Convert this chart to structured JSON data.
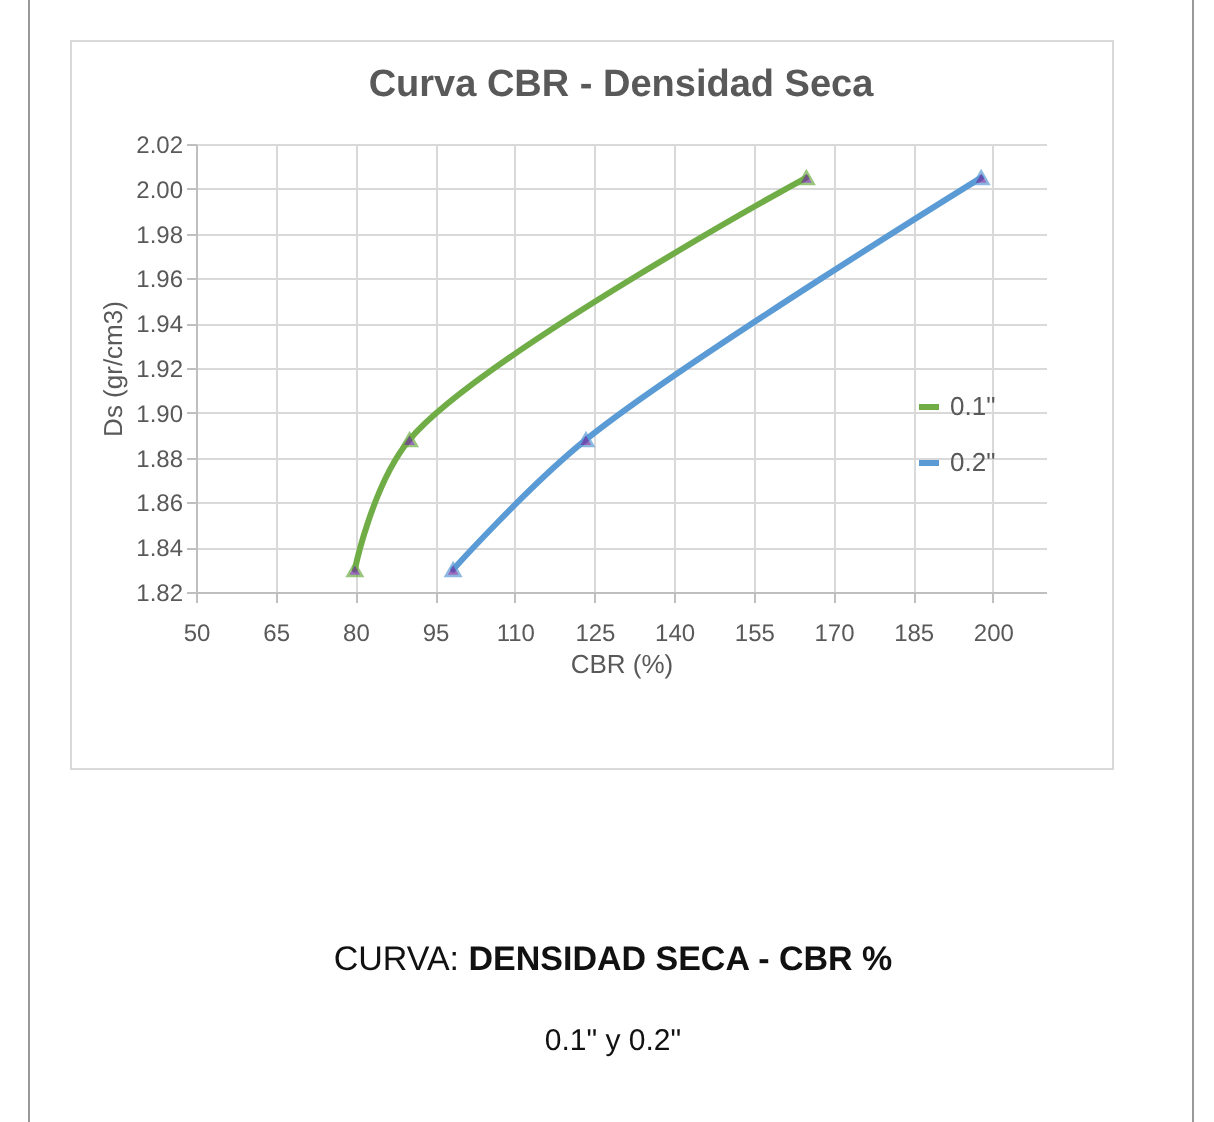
{
  "chart_data": {
    "type": "line",
    "title": "Curva CBR - Densidad Seca",
    "xlabel": "CBR (%)",
    "ylabel": "Ds (gr/cm3)",
    "annotations": [
      "CURVA:",
      "DENSIDAD SECA - CBR %",
      "0.1\" y 0.2\""
    ],
    "series": [
      {
        "name": "0.1\"",
        "color": "#70ad47",
        "x": [
          79.9,
          90.2,
          164.9
        ],
        "values": [
          1.83,
          1.888,
          2.005
        ]
      },
      {
        "name": "0.2\"",
        "color": "#5b9bd5",
        "x": [
          98.4,
          123.4,
          197.8
        ],
        "values": [
          1.83,
          1.888,
          2.005
        ]
      }
    ],
    "xlim": [
      50,
      210
    ],
    "xticks": [
      50,
      65,
      80,
      95,
      110,
      125,
      140,
      155,
      170,
      185,
      200
    ],
    "ylim": [
      1.82,
      2.02
    ],
    "yticks": [
      {
        "value": 1.82,
        "label": "1.82"
      },
      {
        "value": 1.84,
        "label": "1.84"
      },
      {
        "value": 1.86,
        "label": "1.86"
      },
      {
        "value": 1.88,
        "label": "1.88"
      },
      {
        "value": 1.9,
        "label": "1.90"
      },
      {
        "value": 1.92,
        "label": "1.92"
      },
      {
        "value": 1.94,
        "label": "1.94"
      },
      {
        "value": 1.96,
        "label": "1.96"
      },
      {
        "value": 1.98,
        "label": "1.98"
      },
      {
        "value": 2,
        "label": "2.00"
      },
      {
        "value": 2.02,
        "label": "2.02"
      }
    ],
    "grid": true,
    "legend": "right",
    "marker": "triangle",
    "line_style": "solid"
  }
}
